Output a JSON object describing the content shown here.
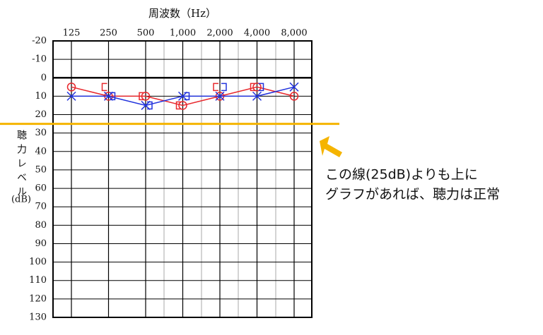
{
  "chart_data": {
    "type": "audiogram",
    "title": "周波数（Hz）",
    "y_label": "聴力レベル",
    "y_unit": "(dB)",
    "categories": [
      "125",
      "250",
      "500",
      "1,000",
      "2,000",
      "4,000",
      "8,000"
    ],
    "ylim": [
      -20,
      130
    ],
    "yticks": [
      -20,
      -10,
      0,
      10,
      20,
      30,
      40,
      50,
      60,
      70,
      80,
      90,
      100,
      110,
      120,
      130
    ],
    "grid": true,
    "y_inverted": true,
    "series": [
      {
        "color": "#e8282d",
        "marker": "circle",
        "line": true,
        "values": [
          5,
          10,
          10,
          15,
          10,
          5,
          10
        ]
      },
      {
        "color": "#2233dd",
        "marker": "x",
        "line": true,
        "values": [
          10,
          10,
          15,
          10,
          10,
          10,
          5
        ]
      },
      {
        "color": "#e8282d",
        "marker": "bracket-left",
        "line": false,
        "values": [
          null,
          5,
          10,
          15,
          5,
          5,
          null
        ]
      },
      {
        "color": "#2233dd",
        "marker": "bracket-right",
        "line": false,
        "values": [
          null,
          10,
          15,
          10,
          5,
          5,
          null
        ]
      }
    ],
    "reference_line": {
      "value": 25,
      "color": "#f5b400"
    },
    "annotation": [
      "この線(25dB)よりも上に",
      "グラフがあれば、聴力は正常"
    ]
  }
}
